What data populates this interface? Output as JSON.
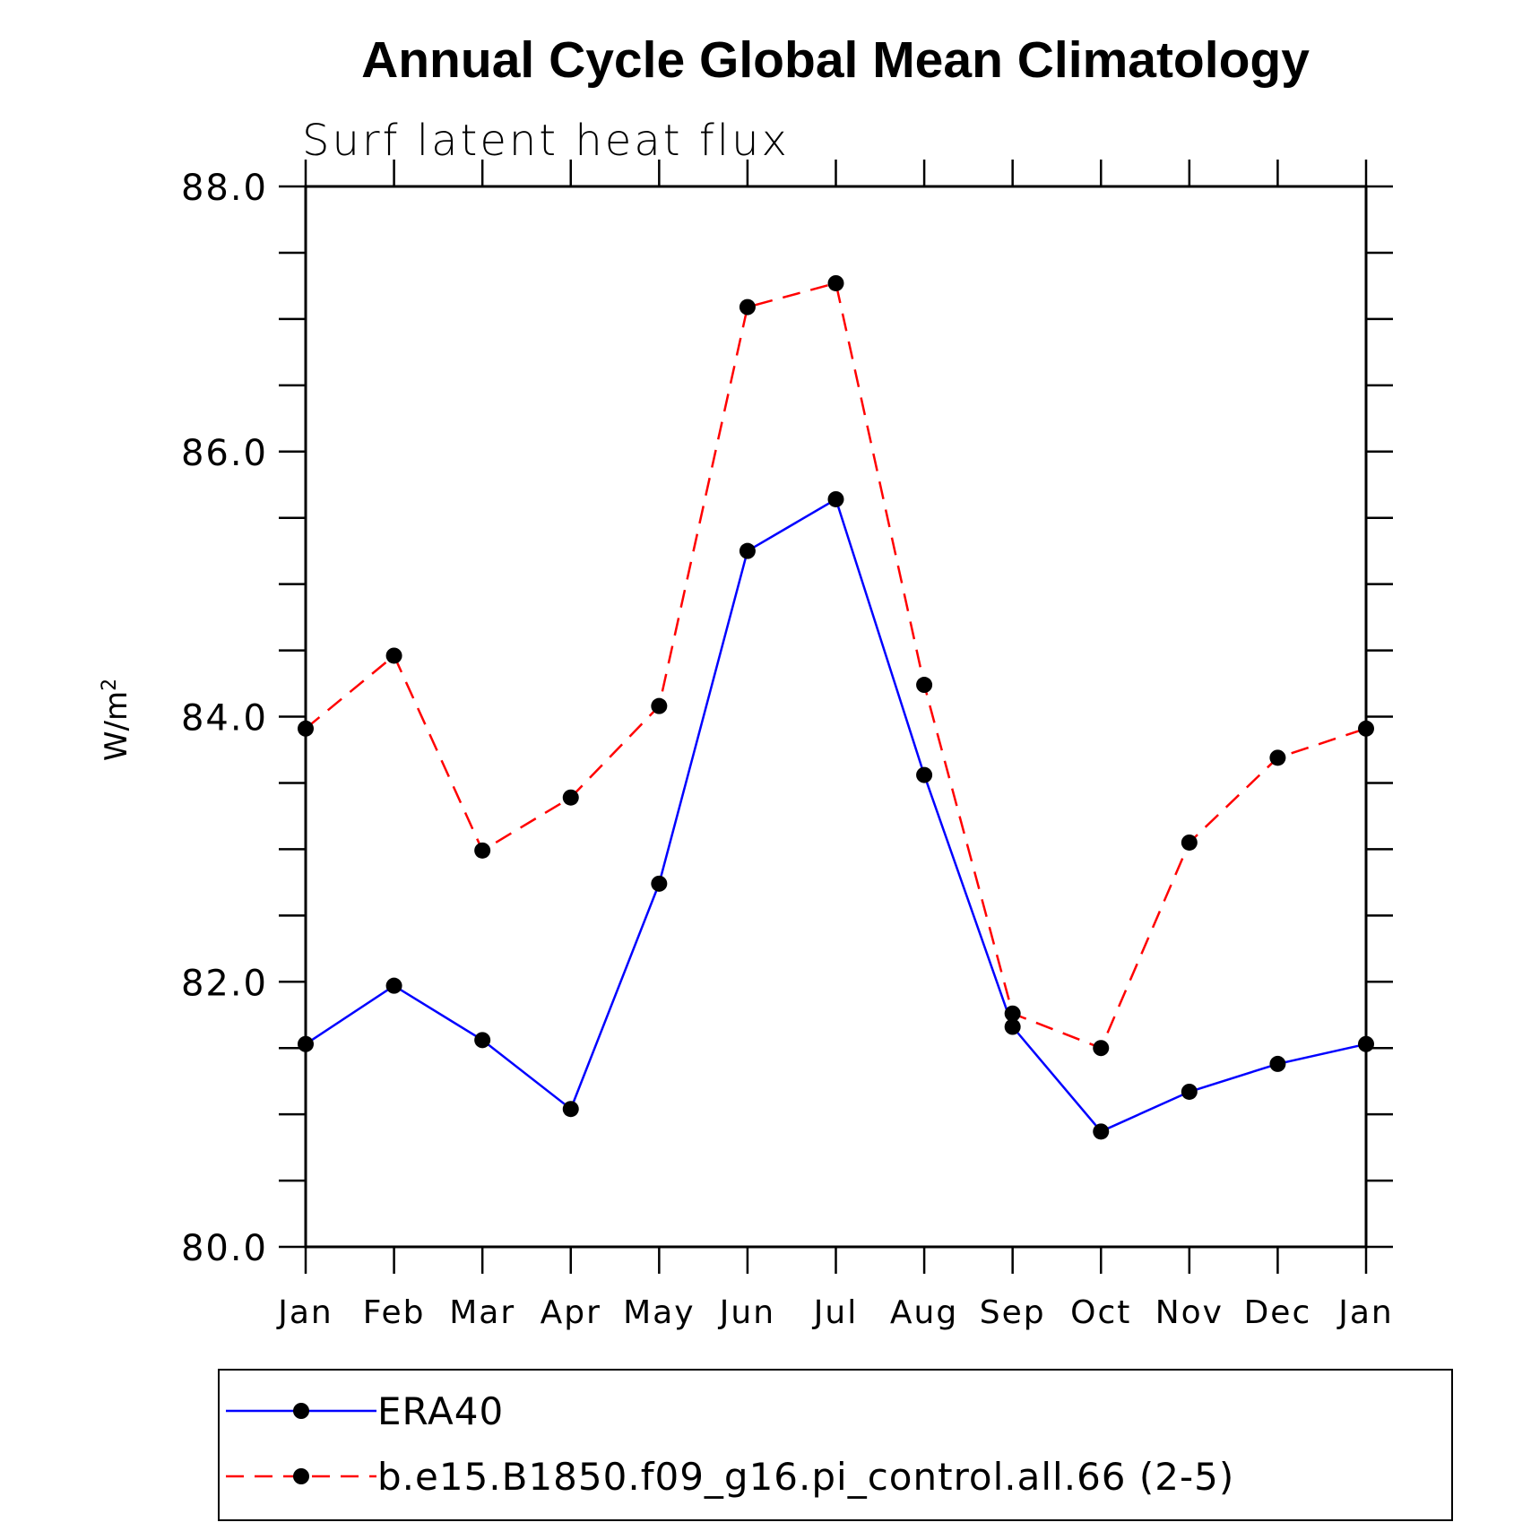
{
  "chart_data": {
    "type": "line",
    "title": "Annual Cycle Global Mean Climatology",
    "subtitle": "Surf latent heat flux",
    "ylabel": "W/m",
    "ylabel_superscript": "2",
    "ylim": [
      80.0,
      88.0
    ],
    "yticks": [
      "80.0",
      "82.0",
      "84.0",
      "86.0",
      "88.0"
    ],
    "y_minor_step": 0.5,
    "categories": [
      "Jan",
      "Feb",
      "Mar",
      "Apr",
      "May",
      "Jun",
      "Jul",
      "Aug",
      "Sep",
      "Oct",
      "Nov",
      "Dec",
      "Jan"
    ],
    "legend_position": "bottom",
    "grid": false,
    "series": [
      {
        "name": "ERA40",
        "color": "#0000ff",
        "dash": "solid",
        "marker": "filled-circle",
        "values": [
          81.53,
          81.97,
          81.56,
          81.04,
          82.74,
          85.25,
          85.64,
          83.56,
          81.66,
          80.87,
          81.17,
          81.38,
          81.53
        ]
      },
      {
        "name": "b.e15.B1850.f09_g16.pi_control.all.66 (2-5)",
        "color": "#ff0000",
        "dash": "dashed",
        "marker": "filled-circle",
        "values": [
          83.91,
          84.46,
          82.99,
          83.39,
          84.08,
          87.09,
          87.27,
          84.24,
          81.76,
          81.5,
          83.05,
          83.69,
          83.91
        ]
      }
    ]
  }
}
